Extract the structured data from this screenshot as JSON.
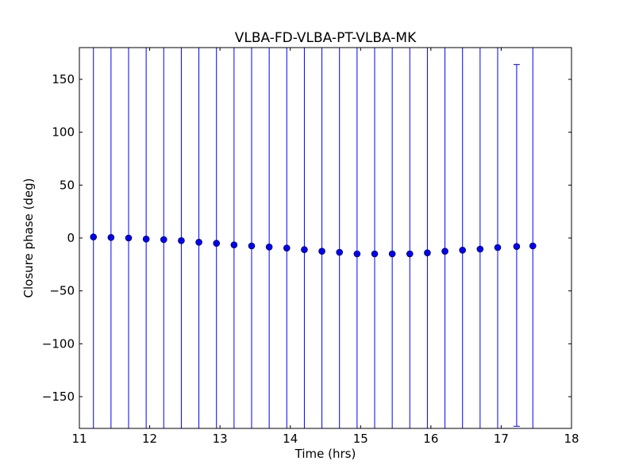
{
  "chart_data": {
    "type": "scatter",
    "title": "VLBA-FD-VLBA-PT-VLBA-MK",
    "xlabel": "Time (hrs)",
    "ylabel": "Closure phase (deg)",
    "xlim": [
      11,
      18
    ],
    "ylim": [
      -180,
      180
    ],
    "xticks": [
      11,
      12,
      13,
      14,
      15,
      16,
      17,
      18
    ],
    "xtick_labels": [
      "11",
      "12",
      "13",
      "14",
      "15",
      "16",
      "17",
      "18"
    ],
    "yticks": [
      150,
      100,
      50,
      0,
      -50,
      -100,
      -150
    ],
    "ytick_labels": [
      "150",
      "100",
      "50",
      "0",
      "−50",
      "−100",
      "−150"
    ],
    "grid": false,
    "marker_color": "#0000ff",
    "errorbar_color": "#0000ff",
    "series": [
      {
        "x": [
          11.2,
          11.45,
          11.7,
          11.95,
          12.2,
          12.45,
          12.7,
          12.95,
          13.2,
          13.45,
          13.7,
          13.95,
          14.2,
          14.45,
          14.7,
          14.95,
          15.2,
          15.45,
          15.7,
          15.95,
          16.2,
          16.45,
          16.7,
          16.95,
          17.22,
          17.45
        ],
        "y": [
          1,
          0.5,
          0,
          -1,
          -1.5,
          -2.5,
          -4,
          -5,
          -6.5,
          -7.5,
          -8.5,
          -9.5,
          -11,
          -12.5,
          -13.5,
          -15,
          -15,
          -15,
          -15,
          -14,
          -12.5,
          -11.5,
          -10.5,
          -9,
          -8,
          -7.5
        ],
        "yerr_low": [
          -180,
          -180,
          -180,
          -180,
          -180,
          -180,
          -180,
          -180,
          -180,
          -180,
          -180,
          -180,
          -180,
          -180,
          -180,
          -180,
          -180,
          -180,
          -180,
          -180,
          -180,
          -180,
          -180,
          -180,
          -178,
          -180
        ],
        "yerr_high": [
          180,
          180,
          180,
          180,
          180,
          180,
          180,
          180,
          180,
          180,
          180,
          180,
          180,
          180,
          180,
          180,
          180,
          180,
          180,
          180,
          180,
          180,
          180,
          180,
          164,
          180
        ]
      }
    ]
  }
}
